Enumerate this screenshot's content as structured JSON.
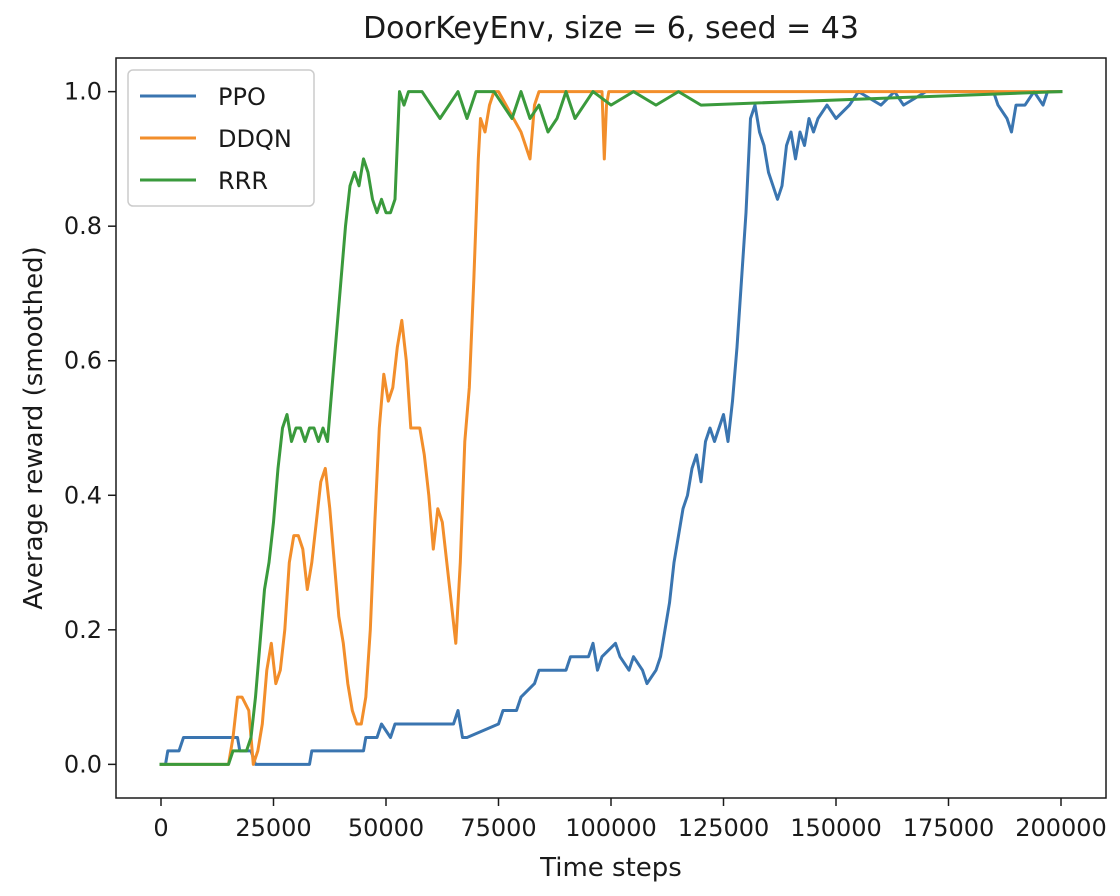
{
  "chart_data": {
    "type": "line",
    "title": "DoorKeyEnv, size = 6, seed = 43",
    "xlabel": "Time steps",
    "ylabel": "Average reward (smoothed)",
    "xlim": [
      -10000,
      210000
    ],
    "ylim": [
      -0.05,
      1.05
    ],
    "xticks": [
      0,
      25000,
      50000,
      75000,
      100000,
      125000,
      150000,
      175000,
      200000
    ],
    "xtick_labels": [
      "0",
      "25000",
      "50000",
      "75000",
      "100000",
      "125000",
      "150000",
      "175000",
      "200000"
    ],
    "yticks": [
      0.0,
      0.2,
      0.4,
      0.6,
      0.8,
      1.0
    ],
    "ytick_labels": [
      "0.0",
      "0.2",
      "0.4",
      "0.6",
      "0.8",
      "1.0"
    ],
    "grid": false,
    "legend_position": "top-left",
    "series": [
      {
        "name": "PPO",
        "color": "#3a75b0",
        "x": [
          0,
          1000,
          1500,
          4000,
          5000,
          17000,
          17500,
          20000,
          21000,
          33000,
          33500,
          45000,
          45500,
          48000,
          49000,
          51000,
          52000,
          55000,
          56000,
          65000,
          66000,
          67000,
          68000,
          75000,
          76000,
          79000,
          80000,
          83000,
          84000,
          90000,
          91000,
          95000,
          96000,
          97000,
          98000,
          101000,
          102000,
          104000,
          105000,
          107000,
          108000,
          110000,
          111000,
          112000,
          113000,
          114000,
          115000,
          116000,
          117000,
          118000,
          119000,
          120000,
          121000,
          122000,
          123000,
          124000,
          125000,
          126000,
          127000,
          128000,
          129000,
          130000,
          131000,
          132000,
          133000,
          134000,
          135000,
          136000,
          137000,
          138000,
          139000,
          140000,
          141000,
          142000,
          143000,
          144000,
          145000,
          146000,
          148000,
          150000,
          153000,
          155000,
          160000,
          163000,
          165000,
          170000,
          175000,
          180000,
          185000,
          186000,
          188000,
          189000,
          190000,
          192000,
          194000,
          196000,
          197000,
          200000
        ],
        "y": [
          0.0,
          0.0,
          0.02,
          0.02,
          0.04,
          0.04,
          0.02,
          0.02,
          0.0,
          0.0,
          0.02,
          0.02,
          0.04,
          0.04,
          0.06,
          0.04,
          0.06,
          0.06,
          0.06,
          0.06,
          0.08,
          0.04,
          0.04,
          0.06,
          0.08,
          0.08,
          0.1,
          0.12,
          0.14,
          0.14,
          0.16,
          0.16,
          0.18,
          0.14,
          0.16,
          0.18,
          0.16,
          0.14,
          0.16,
          0.14,
          0.12,
          0.14,
          0.16,
          0.2,
          0.24,
          0.3,
          0.34,
          0.38,
          0.4,
          0.44,
          0.46,
          0.42,
          0.48,
          0.5,
          0.48,
          0.5,
          0.52,
          0.48,
          0.54,
          0.62,
          0.72,
          0.82,
          0.96,
          0.98,
          0.94,
          0.92,
          0.88,
          0.86,
          0.84,
          0.86,
          0.92,
          0.94,
          0.9,
          0.94,
          0.92,
          0.96,
          0.94,
          0.96,
          0.98,
          0.96,
          0.98,
          1.0,
          0.98,
          1.0,
          0.98,
          1.0,
          1.0,
          1.0,
          1.0,
          0.98,
          0.96,
          0.94,
          0.98,
          0.98,
          1.0,
          0.98,
          1.0,
          1.0
        ]
      },
      {
        "name": "DDQN",
        "color": "#f28e2b",
        "x": [
          0,
          15000,
          16000,
          17000,
          18000,
          19500,
          20500,
          21500,
          22500,
          23500,
          24500,
          25500,
          26500,
          27500,
          28500,
          29500,
          30500,
          31500,
          32500,
          33500,
          34500,
          35500,
          36500,
          37500,
          38500,
          39500,
          40500,
          41500,
          42500,
          43500,
          44500,
          45500,
          46500,
          47500,
          48500,
          49500,
          50500,
          51500,
          52500,
          53500,
          54500,
          55500,
          56500,
          57500,
          58500,
          59500,
          60500,
          61500,
          62500,
          63500,
          64500,
          65500,
          66500,
          67500,
          68500,
          69500,
          70500,
          71000,
          72000,
          73000,
          74000,
          75000,
          80000,
          82000,
          83000,
          84000,
          86000,
          90000,
          98000,
          98500,
          99000,
          99500,
          100000,
          200000
        ],
        "y": [
          0.0,
          0.0,
          0.04,
          0.1,
          0.1,
          0.08,
          0.0,
          0.02,
          0.06,
          0.14,
          0.18,
          0.12,
          0.14,
          0.2,
          0.3,
          0.34,
          0.34,
          0.32,
          0.26,
          0.3,
          0.36,
          0.42,
          0.44,
          0.38,
          0.3,
          0.22,
          0.18,
          0.12,
          0.08,
          0.06,
          0.06,
          0.1,
          0.2,
          0.36,
          0.5,
          0.58,
          0.54,
          0.56,
          0.62,
          0.66,
          0.6,
          0.5,
          0.5,
          0.5,
          0.46,
          0.4,
          0.32,
          0.38,
          0.36,
          0.3,
          0.24,
          0.18,
          0.3,
          0.48,
          0.56,
          0.72,
          0.9,
          0.96,
          0.94,
          0.98,
          1.0,
          1.0,
          0.94,
          0.9,
          0.98,
          1.0,
          1.0,
          1.0,
          1.0,
          0.9,
          0.98,
          1.0,
          1.0,
          1.0
        ]
      },
      {
        "name": "RRR",
        "color": "#3a9a3c",
        "x": [
          0,
          15000,
          16000,
          19000,
          20000,
          21000,
          22000,
          23000,
          24000,
          25000,
          26000,
          27000,
          28000,
          29000,
          30000,
          31000,
          32000,
          33000,
          34000,
          35000,
          36000,
          37000,
          38000,
          39000,
          40000,
          41000,
          42000,
          43000,
          44000,
          45000,
          46000,
          47000,
          48000,
          49000,
          50000,
          51000,
          52000,
          53000,
          54000,
          55000,
          58000,
          60000,
          62000,
          64000,
          66000,
          68000,
          70000,
          72000,
          74000,
          76000,
          78000,
          80000,
          82000,
          84000,
          86000,
          88000,
          90000,
          92000,
          94000,
          96000,
          100000,
          105000,
          110000,
          115000,
          120000,
          200000
        ],
        "y": [
          0.0,
          0.0,
          0.02,
          0.02,
          0.04,
          0.1,
          0.18,
          0.26,
          0.3,
          0.36,
          0.44,
          0.5,
          0.52,
          0.48,
          0.5,
          0.5,
          0.48,
          0.5,
          0.5,
          0.48,
          0.5,
          0.48,
          0.56,
          0.64,
          0.72,
          0.8,
          0.86,
          0.88,
          0.86,
          0.9,
          0.88,
          0.84,
          0.82,
          0.84,
          0.82,
          0.82,
          0.84,
          1.0,
          0.98,
          1.0,
          1.0,
          0.98,
          0.96,
          0.98,
          1.0,
          0.96,
          1.0,
          1.0,
          1.0,
          0.98,
          0.96,
          1.0,
          0.96,
          0.98,
          0.94,
          0.96,
          1.0,
          0.96,
          0.98,
          1.0,
          0.98,
          1.0,
          0.98,
          1.0,
          0.98,
          1.0
        ]
      }
    ]
  }
}
